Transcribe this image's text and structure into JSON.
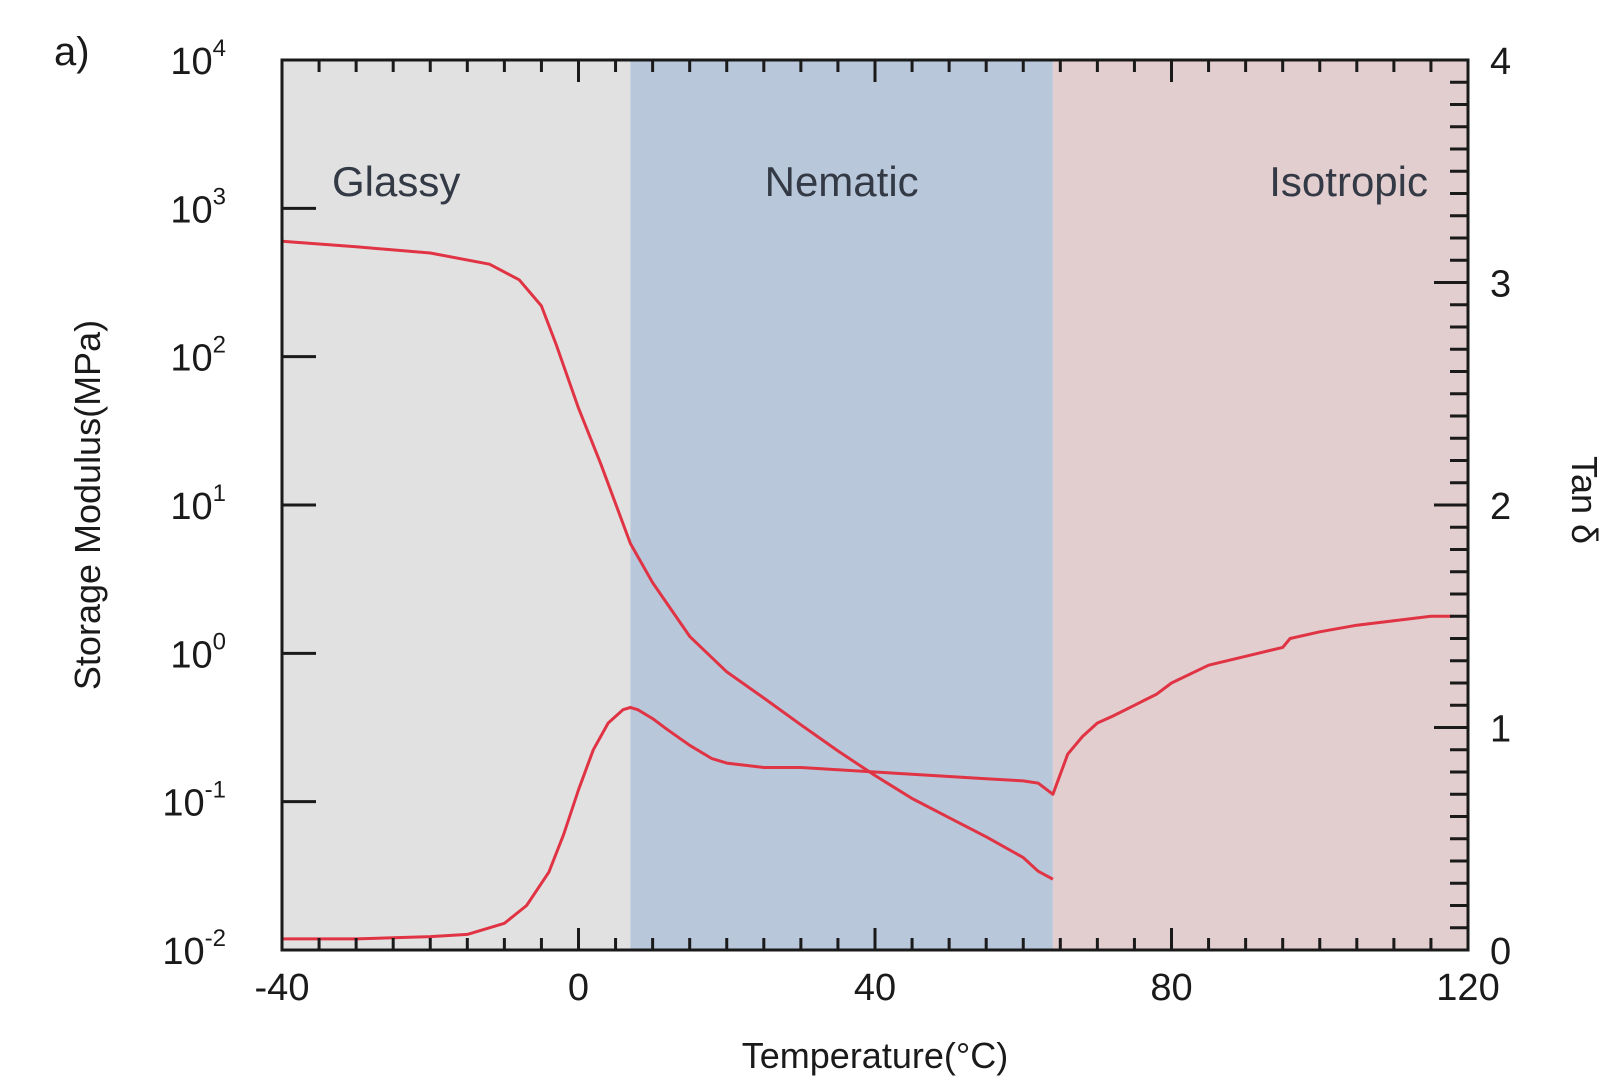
{
  "panel_label": "a)",
  "chart_data": {
    "type": "line",
    "xlabel": "Temperature(°C)",
    "ylabel": "Storage Modulus(MPa)",
    "y2label": "Tan δ",
    "xlim": [
      -40,
      120
    ],
    "ylim_log": [
      -2,
      4
    ],
    "y2lim": [
      0,
      4
    ],
    "x_ticks": [
      -40,
      0,
      40,
      80,
      120
    ],
    "y_ticks": [
      {
        "base": "10",
        "exp": "-2",
        "value": -2
      },
      {
        "base": "10",
        "exp": "-1",
        "value": -1
      },
      {
        "base": "10",
        "exp": "0",
        "value": 0
      },
      {
        "base": "10",
        "exp": "1",
        "value": 1
      },
      {
        "base": "10",
        "exp": "2",
        "value": 2
      },
      {
        "base": "10",
        "exp": "3",
        "value": 3
      },
      {
        "base": "10",
        "exp": "4",
        "value": 4
      }
    ],
    "y2_ticks": [
      "0",
      "1",
      "2",
      "3",
      "4"
    ],
    "grid": false,
    "regions": [
      {
        "label": "Glassy",
        "x0": -40,
        "x1": 7,
        "color": "#e1e1e2"
      },
      {
        "label": "Nematic",
        "x0": 7,
        "x1": 64,
        "color": "#b9c7da"
      },
      {
        "label": "Isotropic",
        "x0": 64,
        "x1": 120,
        "color": "#e2cdcf"
      }
    ],
    "line_color": "#e03444",
    "storage_modulus": {
      "x": [
        -40,
        -30,
        -20,
        -12,
        -8,
        -5,
        -3,
        0,
        3,
        7,
        10,
        15,
        20,
        25,
        30,
        35,
        40,
        45,
        50,
        55,
        60,
        62,
        64
      ],
      "y": [
        600,
        550,
        500,
        420,
        330,
        220,
        120,
        45,
        19,
        5.5,
        3.0,
        1.3,
        0.75,
        0.5,
        0.33,
        0.22,
        0.15,
        0.105,
        0.078,
        0.058,
        0.042,
        0.034,
        0.03
      ]
    },
    "tan_delta": {
      "x": [
        -40,
        -30,
        -20,
        -15,
        -10,
        -7,
        -4,
        -2,
        0,
        2,
        4,
        6,
        7,
        8,
        10,
        12,
        15,
        18,
        20,
        25,
        30,
        35,
        40,
        45,
        50,
        55,
        60,
        62,
        64,
        66,
        68,
        70,
        72,
        75,
        78,
        80,
        85,
        90,
        95,
        96,
        100,
        105,
        110,
        115,
        118
      ],
      "y": [
        0.05,
        0.05,
        0.06,
        0.07,
        0.12,
        0.2,
        0.35,
        0.52,
        0.72,
        0.9,
        1.02,
        1.08,
        1.09,
        1.08,
        1.04,
        0.99,
        0.92,
        0.86,
        0.84,
        0.82,
        0.82,
        0.81,
        0.8,
        0.79,
        0.78,
        0.77,
        0.76,
        0.75,
        0.7,
        0.88,
        0.96,
        1.02,
        1.05,
        1.1,
        1.15,
        1.2,
        1.28,
        1.32,
        1.36,
        1.4,
        1.43,
        1.46,
        1.48,
        1.5,
        1.5
      ]
    }
  }
}
